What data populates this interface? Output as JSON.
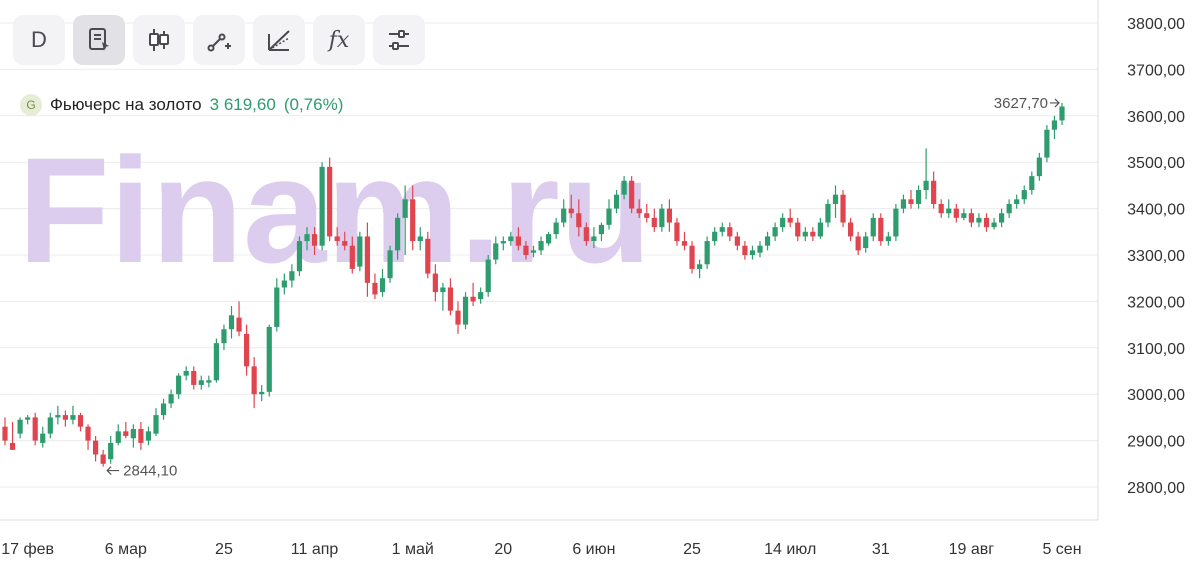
{
  "toolbar": {
    "items": [
      {
        "name": "period",
        "label": "D"
      },
      {
        "name": "notes"
      },
      {
        "name": "chart-type"
      },
      {
        "name": "drawing"
      },
      {
        "name": "ruler"
      },
      {
        "name": "indicators",
        "label": "fx"
      },
      {
        "name": "settings"
      }
    ]
  },
  "legend": {
    "badge": "G",
    "name": "Фьючерс на золото",
    "price": "3 619,60",
    "change": "(0,76%)"
  },
  "watermark": "Finam.ru",
  "annotations": {
    "high": "3627,70",
    "low": "2844,10"
  },
  "colors": {
    "up": "#2e9c6e",
    "down": "#e0454f",
    "grid": "#ececec",
    "watermark": "#dccdef",
    "axis_text": "#333333"
  },
  "chart_data": {
    "type": "candlestick",
    "y_ticks": [
      "2800,00",
      "2900,00",
      "3000,00",
      "3100,00",
      "3200,00",
      "3300,00",
      "3400,00",
      "3500,00",
      "3600,00",
      "3700,00",
      "3800,00"
    ],
    "ylim": [
      2750,
      3830
    ],
    "x_ticks": [
      {
        "label": "17 фев",
        "index": 3
      },
      {
        "label": "6 мар",
        "index": 16
      },
      {
        "label": "25",
        "index": 29
      },
      {
        "label": "11 апр",
        "index": 41
      },
      {
        "label": "1 май",
        "index": 54
      },
      {
        "label": "20",
        "index": 66
      },
      {
        "label": "6 июн",
        "index": 78
      },
      {
        "label": "25",
        "index": 91
      },
      {
        "label": "14 июл",
        "index": 104
      },
      {
        "label": "31",
        "index": 116
      },
      {
        "label": "19 авг",
        "index": 128
      },
      {
        "label": "5 сен",
        "index": 140
      }
    ],
    "candles": [
      [
        2930,
        2950,
        2900,
        2890
      ],
      [
        2895,
        2940,
        2880,
        2880
      ],
      [
        2915,
        2950,
        2945,
        2905
      ],
      [
        2945,
        2955,
        2950,
        2935
      ],
      [
        2950,
        2960,
        2900,
        2890
      ],
      [
        2895,
        2930,
        2915,
        2885
      ],
      [
        2915,
        2960,
        2950,
        2905
      ],
      [
        2950,
        2975,
        2955,
        2935
      ],
      [
        2955,
        2965,
        2945,
        2930
      ],
      [
        2945,
        2975,
        2955,
        2935
      ],
      [
        2955,
        2960,
        2930,
        2920
      ],
      [
        2930,
        2935,
        2900,
        2880
      ],
      [
        2900,
        2910,
        2870,
        2855
      ],
      [
        2870,
        2880,
        2850,
        2844
      ],
      [
        2860,
        2910,
        2895,
        2850
      ],
      [
        2895,
        2935,
        2920,
        2890
      ],
      [
        2920,
        2940,
        2910,
        2905
      ],
      [
        2905,
        2935,
        2925,
        2885
      ],
      [
        2925,
        2940,
        2895,
        2880
      ],
      [
        2900,
        2930,
        2920,
        2890
      ],
      [
        2915,
        2970,
        2955,
        2910
      ],
      [
        2955,
        2990,
        2980,
        2945
      ],
      [
        2980,
        3010,
        3000,
        2970
      ],
      [
        3000,
        3045,
        3040,
        2990
      ],
      [
        3040,
        3060,
        3050,
        3030
      ],
      [
        3050,
        3060,
        3020,
        3010
      ],
      [
        3020,
        3040,
        3030,
        3010
      ],
      [
        3025,
        3040,
        3030,
        3015
      ],
      [
        3030,
        3120,
        3110,
        3025
      ],
      [
        3110,
        3150,
        3140,
        3095
      ],
      [
        3140,
        3190,
        3170,
        3120
      ],
      [
        3165,
        3200,
        3135,
        3125
      ],
      [
        3130,
        3150,
        3060,
        3040
      ],
      [
        3060,
        3080,
        3000,
        2970
      ],
      [
        3000,
        3020,
        3005,
        2985
      ],
      [
        3005,
        3150,
        3145,
        2995
      ],
      [
        3145,
        3250,
        3230,
        3135
      ],
      [
        3230,
        3260,
        3245,
        3215
      ],
      [
        3245,
        3280,
        3265,
        3230
      ],
      [
        3265,
        3340,
        3330,
        3255
      ],
      [
        3330,
        3360,
        3345,
        3310
      ],
      [
        3345,
        3360,
        3320,
        3300
      ],
      [
        3320,
        3500,
        3490,
        3310
      ],
      [
        3490,
        3510,
        3340,
        3330
      ],
      [
        3340,
        3360,
        3330,
        3320
      ],
      [
        3330,
        3350,
        3320,
        3310
      ],
      [
        3320,
        3340,
        3270,
        3260
      ],
      [
        3275,
        3350,
        3340,
        3265
      ],
      [
        3340,
        3370,
        3240,
        3210
      ],
      [
        3240,
        3260,
        3215,
        3205
      ],
      [
        3220,
        3270,
        3250,
        3210
      ],
      [
        3250,
        3320,
        3310,
        3240
      ],
      [
        3310,
        3390,
        3380,
        3290
      ],
      [
        3380,
        3450,
        3420,
        3300
      ],
      [
        3420,
        3450,
        3330,
        3310
      ],
      [
        3330,
        3360,
        3340,
        3310
      ],
      [
        3335,
        3350,
        3260,
        3250
      ],
      [
        3260,
        3280,
        3220,
        3200
      ],
      [
        3220,
        3240,
        3230,
        3180
      ],
      [
        3230,
        3250,
        3180,
        3170
      ],
      [
        3180,
        3200,
        3150,
        3130
      ],
      [
        3150,
        3220,
        3210,
        3140
      ],
      [
        3210,
        3240,
        3200,
        3190
      ],
      [
        3205,
        3230,
        3220,
        3195
      ],
      [
        3220,
        3300,
        3290,
        3210
      ],
      [
        3290,
        3340,
        3325,
        3280
      ],
      [
        3325,
        3340,
        3330,
        3310
      ],
      [
        3330,
        3350,
        3340,
        3320
      ],
      [
        3340,
        3360,
        3320,
        3310
      ],
      [
        3320,
        3330,
        3300,
        3290
      ],
      [
        3305,
        3320,
        3310,
        3295
      ],
      [
        3310,
        3340,
        3330,
        3300
      ],
      [
        3325,
        3350,
        3345,
        3320
      ],
      [
        3345,
        3380,
        3370,
        3335
      ],
      [
        3370,
        3420,
        3400,
        3360
      ],
      [
        3400,
        3430,
        3390,
        3380
      ],
      [
        3390,
        3420,
        3360,
        3340
      ],
      [
        3360,
        3370,
        3330,
        3320
      ],
      [
        3330,
        3360,
        3340,
        3315
      ],
      [
        3345,
        3370,
        3365,
        3330
      ],
      [
        3365,
        3420,
        3400,
        3355
      ],
      [
        3400,
        3440,
        3430,
        3390
      ],
      [
        3430,
        3470,
        3460,
        3420
      ],
      [
        3460,
        3470,
        3400,
        3390
      ],
      [
        3400,
        3420,
        3390,
        3380
      ],
      [
        3390,
        3410,
        3380,
        3370
      ],
      [
        3380,
        3400,
        3360,
        3350
      ],
      [
        3360,
        3410,
        3400,
        3350
      ],
      [
        3400,
        3420,
        3370,
        3350
      ],
      [
        3370,
        3380,
        3330,
        3320
      ],
      [
        3330,
        3350,
        3320,
        3310
      ],
      [
        3320,
        3330,
        3270,
        3260
      ],
      [
        3270,
        3290,
        3280,
        3250
      ],
      [
        3280,
        3340,
        3330,
        3270
      ],
      [
        3330,
        3360,
        3350,
        3320
      ],
      [
        3350,
        3370,
        3360,
        3340
      ],
      [
        3360,
        3370,
        3340,
        3330
      ],
      [
        3340,
        3350,
        3320,
        3310
      ],
      [
        3320,
        3330,
        3300,
        3290
      ],
      [
        3300,
        3320,
        3310,
        3290
      ],
      [
        3305,
        3330,
        3320,
        3295
      ],
      [
        3320,
        3350,
        3340,
        3310
      ],
      [
        3340,
        3370,
        3360,
        3330
      ],
      [
        3360,
        3390,
        3380,
        3350
      ],
      [
        3380,
        3400,
        3370,
        3360
      ],
      [
        3370,
        3380,
        3340,
        3330
      ],
      [
        3340,
        3360,
        3350,
        3330
      ],
      [
        3350,
        3360,
        3340,
        3330
      ],
      [
        3340,
        3380,
        3370,
        3335
      ],
      [
        3370,
        3420,
        3410,
        3360
      ],
      [
        3410,
        3450,
        3430,
        3380
      ],
      [
        3430,
        3440,
        3370,
        3360
      ],
      [
        3370,
        3380,
        3340,
        3330
      ],
      [
        3340,
        3350,
        3310,
        3300
      ],
      [
        3315,
        3350,
        3340,
        3305
      ],
      [
        3340,
        3390,
        3380,
        3330
      ],
      [
        3380,
        3390,
        3330,
        3320
      ],
      [
        3330,
        3350,
        3340,
        3320
      ],
      [
        3340,
        3410,
        3400,
        3330
      ],
      [
        3400,
        3430,
        3420,
        3390
      ],
      [
        3420,
        3440,
        3410,
        3400
      ],
      [
        3410,
        3450,
        3440,
        3400
      ],
      [
        3440,
        3530,
        3460,
        3420
      ],
      [
        3460,
        3480,
        3410,
        3400
      ],
      [
        3410,
        3420,
        3390,
        3380
      ],
      [
        3390,
        3420,
        3400,
        3380
      ],
      [
        3400,
        3410,
        3380,
        3370
      ],
      [
        3380,
        3400,
        3390,
        3375
      ],
      [
        3390,
        3400,
        3370,
        3360
      ],
      [
        3370,
        3390,
        3380,
        3360
      ],
      [
        3380,
        3390,
        3360,
        3350
      ],
      [
        3360,
        3380,
        3370,
        3355
      ],
      [
        3370,
        3400,
        3390,
        3360
      ],
      [
        3390,
        3420,
        3410,
        3380
      ],
      [
        3410,
        3430,
        3420,
        3400
      ],
      [
        3420,
        3450,
        3440,
        3410
      ],
      [
        3440,
        3480,
        3470,
        3430
      ],
      [
        3470,
        3520,
        3510,
        3460
      ],
      [
        3510,
        3580,
        3570,
        3500
      ],
      [
        3570,
        3600,
        3590,
        3550
      ],
      [
        3590,
        3628,
        3620,
        3580
      ]
    ]
  }
}
